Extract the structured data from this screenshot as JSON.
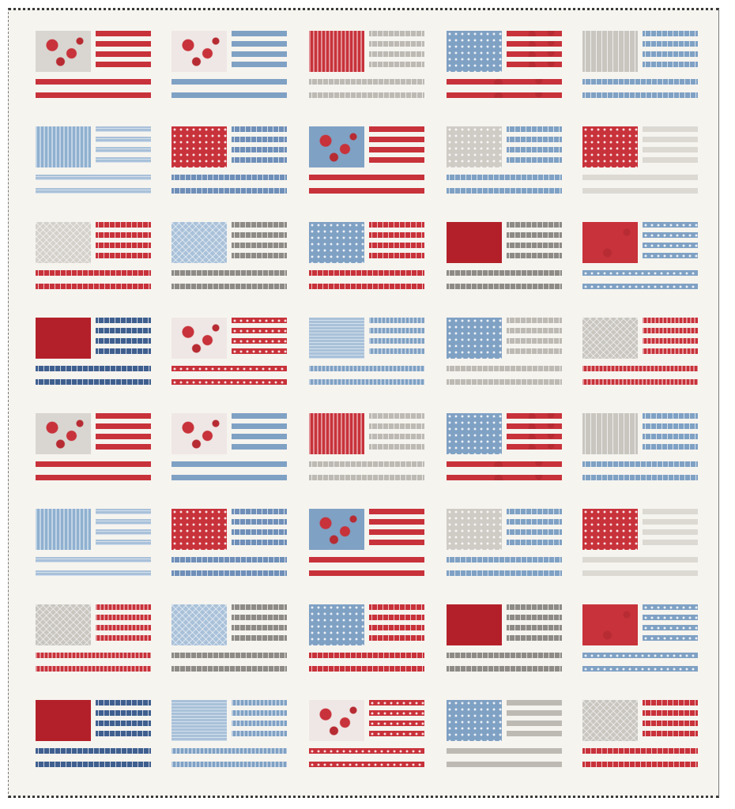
{
  "colors": {
    "background": "#f6f4ef",
    "red": "#c8323a",
    "dark_red": "#b3202a",
    "blue": "#7fa1c4",
    "light_blue": "#a9c1d9",
    "gray": "#c9c6c0",
    "light_gray": "#dcd9d3"
  },
  "quilt": {
    "rows": [
      [
        {
          "canton": {
            "color": "#d9d6d1",
            "texture": "floral"
          },
          "stripes": {
            "color": "#c8323a",
            "texture": "solid"
          }
        },
        {
          "canton": {
            "color": "#efe7e5",
            "texture": "floral"
          },
          "stripes": {
            "color": "#7fa1c4",
            "texture": "solid"
          }
        },
        {
          "canton": {
            "color": "#c8323a",
            "texture": "lines"
          },
          "stripes": {
            "color": "#bdb9b3",
            "texture": "text"
          }
        },
        {
          "canton": {
            "color": "#7fa1c4",
            "texture": "dots"
          },
          "stripes": {
            "color": "#c8323a",
            "texture": "floral"
          }
        },
        {
          "canton": {
            "color": "#c9c6c0",
            "texture": "text"
          },
          "stripes": {
            "color": "#7fa1c4",
            "texture": "text"
          }
        }
      ],
      [
        {
          "canton": {
            "color": "#8fb0d0",
            "texture": "lines"
          },
          "stripes": {
            "color": "#a9c1d9",
            "texture": "hlines"
          }
        },
        {
          "canton": {
            "color": "#c8323a",
            "texture": "dots"
          },
          "stripes": {
            "color": "#6f8fb8",
            "texture": "text"
          }
        },
        {
          "canton": {
            "color": "#7fa1c4",
            "texture": "floral"
          },
          "stripes": {
            "color": "#c8323a",
            "texture": "solid"
          }
        },
        {
          "canton": {
            "color": "#cfcbc5",
            "texture": "dots"
          },
          "stripes": {
            "color": "#7fa1c4",
            "texture": "text"
          }
        },
        {
          "canton": {
            "color": "#c8323a",
            "texture": "dots"
          },
          "stripes": {
            "color": "#dcd9d3",
            "texture": "solid"
          }
        }
      ],
      [
        {
          "canton": {
            "color": "#d4d1cb",
            "texture": "grid"
          },
          "stripes": {
            "color": "#c8323a",
            "texture": "text"
          }
        },
        {
          "canton": {
            "color": "#a9c1d9",
            "texture": "grid"
          },
          "stripes": {
            "color": "#8e8b86",
            "texture": "text"
          }
        },
        {
          "canton": {
            "color": "#7fa1c4",
            "texture": "dots"
          },
          "stripes": {
            "color": "#c8323a",
            "texture": "text"
          }
        },
        {
          "canton": {
            "color": "#b3202a",
            "texture": "solid"
          },
          "stripes": {
            "color": "#8e8b86",
            "texture": "text"
          }
        },
        {
          "canton": {
            "color": "#c8323a",
            "texture": "floral"
          },
          "stripes": {
            "color": "#7fa1c4",
            "texture": "dots"
          }
        }
      ],
      [
        {
          "canton": {
            "color": "#b3202a",
            "texture": "solid"
          },
          "stripes": {
            "color": "#3f5f8f",
            "texture": "text"
          }
        },
        {
          "canton": {
            "color": "#efe7e5",
            "texture": "floral"
          },
          "stripes": {
            "color": "#c8323a",
            "texture": "dots"
          }
        },
        {
          "canton": {
            "color": "#a9c1d9",
            "texture": "hlines"
          },
          "stripes": {
            "color": "#7fa1c4",
            "texture": "lines"
          }
        },
        {
          "canton": {
            "color": "#7fa1c4",
            "texture": "dots"
          },
          "stripes": {
            "color": "#bdb9b3",
            "texture": "text"
          }
        },
        {
          "canton": {
            "color": "#c9c6c0",
            "texture": "grid"
          },
          "stripes": {
            "color": "#c8323a",
            "texture": "lines"
          }
        }
      ],
      [
        {
          "canton": {
            "color": "#d9d6d1",
            "texture": "floral"
          },
          "stripes": {
            "color": "#c8323a",
            "texture": "solid"
          }
        },
        {
          "canton": {
            "color": "#efe7e5",
            "texture": "floral"
          },
          "stripes": {
            "color": "#7fa1c4",
            "texture": "solid"
          }
        },
        {
          "canton": {
            "color": "#c8323a",
            "texture": "lines"
          },
          "stripes": {
            "color": "#bdb9b3",
            "texture": "text"
          }
        },
        {
          "canton": {
            "color": "#7fa1c4",
            "texture": "dots"
          },
          "stripes": {
            "color": "#c8323a",
            "texture": "floral"
          }
        },
        {
          "canton": {
            "color": "#c9c6c0",
            "texture": "text"
          },
          "stripes": {
            "color": "#7fa1c4",
            "texture": "text"
          }
        }
      ],
      [
        {
          "canton": {
            "color": "#8fb0d0",
            "texture": "lines"
          },
          "stripes": {
            "color": "#a9c1d9",
            "texture": "hlines"
          }
        },
        {
          "canton": {
            "color": "#c8323a",
            "texture": "dots"
          },
          "stripes": {
            "color": "#6f8fb8",
            "texture": "text"
          }
        },
        {
          "canton": {
            "color": "#7fa1c4",
            "texture": "floral"
          },
          "stripes": {
            "color": "#c8323a",
            "texture": "solid"
          }
        },
        {
          "canton": {
            "color": "#cfcbc5",
            "texture": "dots"
          },
          "stripes": {
            "color": "#7fa1c4",
            "texture": "text"
          }
        },
        {
          "canton": {
            "color": "#c8323a",
            "texture": "dots"
          },
          "stripes": {
            "color": "#dcd9d3",
            "texture": "solid"
          }
        }
      ],
      [
        {
          "canton": {
            "color": "#c9c6c0",
            "texture": "grid"
          },
          "stripes": {
            "color": "#c8323a",
            "texture": "lines"
          }
        },
        {
          "canton": {
            "color": "#a9c1d9",
            "texture": "grid"
          },
          "stripes": {
            "color": "#8e8b86",
            "texture": "text"
          }
        },
        {
          "canton": {
            "color": "#7fa1c4",
            "texture": "dots"
          },
          "stripes": {
            "color": "#c8323a",
            "texture": "text"
          }
        },
        {
          "canton": {
            "color": "#b3202a",
            "texture": "solid"
          },
          "stripes": {
            "color": "#8e8b86",
            "texture": "text"
          }
        },
        {
          "canton": {
            "color": "#c8323a",
            "texture": "floral"
          },
          "stripes": {
            "color": "#7fa1c4",
            "texture": "dots"
          }
        }
      ],
      [
        {
          "canton": {
            "color": "#b3202a",
            "texture": "solid"
          },
          "stripes": {
            "color": "#3f5f8f",
            "texture": "text"
          }
        },
        {
          "canton": {
            "color": "#a9c1d9",
            "texture": "hlines"
          },
          "stripes": {
            "color": "#7fa1c4",
            "texture": "lines"
          }
        },
        {
          "canton": {
            "color": "#efe7e5",
            "texture": "floral"
          },
          "stripes": {
            "color": "#c8323a",
            "texture": "dots"
          }
        },
        {
          "canton": {
            "color": "#7fa1c4",
            "texture": "dots"
          },
          "stripes": {
            "color": "#bdb9b3",
            "texture": "solid"
          }
        },
        {
          "canton": {
            "color": "#c9c6c0",
            "texture": "grid"
          },
          "stripes": {
            "color": "#c8323a",
            "texture": "text"
          }
        }
      ]
    ]
  }
}
